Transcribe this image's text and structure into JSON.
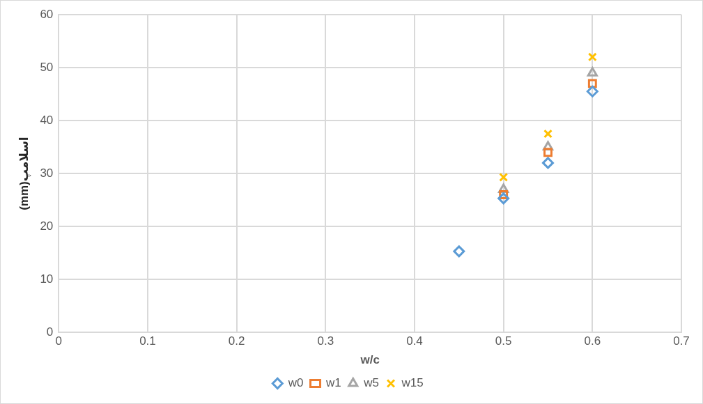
{
  "chart_data": {
    "type": "scatter",
    "xlabel": "w/c",
    "ylabel": "(mm)اسلامپ",
    "xlim": [
      0,
      0.7
    ],
    "xticks": [
      0,
      0.1,
      0.2,
      0.3,
      0.4,
      0.5,
      0.6,
      0.7
    ],
    "ylim": [
      0,
      60
    ],
    "yticks": [
      0,
      10,
      20,
      30,
      40,
      50,
      60
    ],
    "grid": true,
    "legend": "bottom",
    "series": [
      {
        "name": "w0",
        "color": "#5b9bd5",
        "marker": "diamond",
        "x": [
          0.45,
          0.5,
          0.55,
          0.6
        ],
        "values": [
          15.3,
          25.3,
          32,
          45.5
        ]
      },
      {
        "name": "w1",
        "color": "#ed7d31",
        "marker": "square",
        "x": [
          0.5,
          0.55,
          0.6
        ],
        "values": [
          26,
          34,
          47
        ]
      },
      {
        "name": "w5",
        "color": "#a5a5a5",
        "marker": "triangle",
        "x": [
          0.5,
          0.55,
          0.6
        ],
        "values": [
          27,
          35,
          49
        ]
      },
      {
        "name": "w15",
        "color": "#ffc000",
        "marker": "cross",
        "x": [
          0.5,
          0.55,
          0.6
        ],
        "values": [
          29.3,
          37.5,
          52
        ]
      }
    ]
  }
}
